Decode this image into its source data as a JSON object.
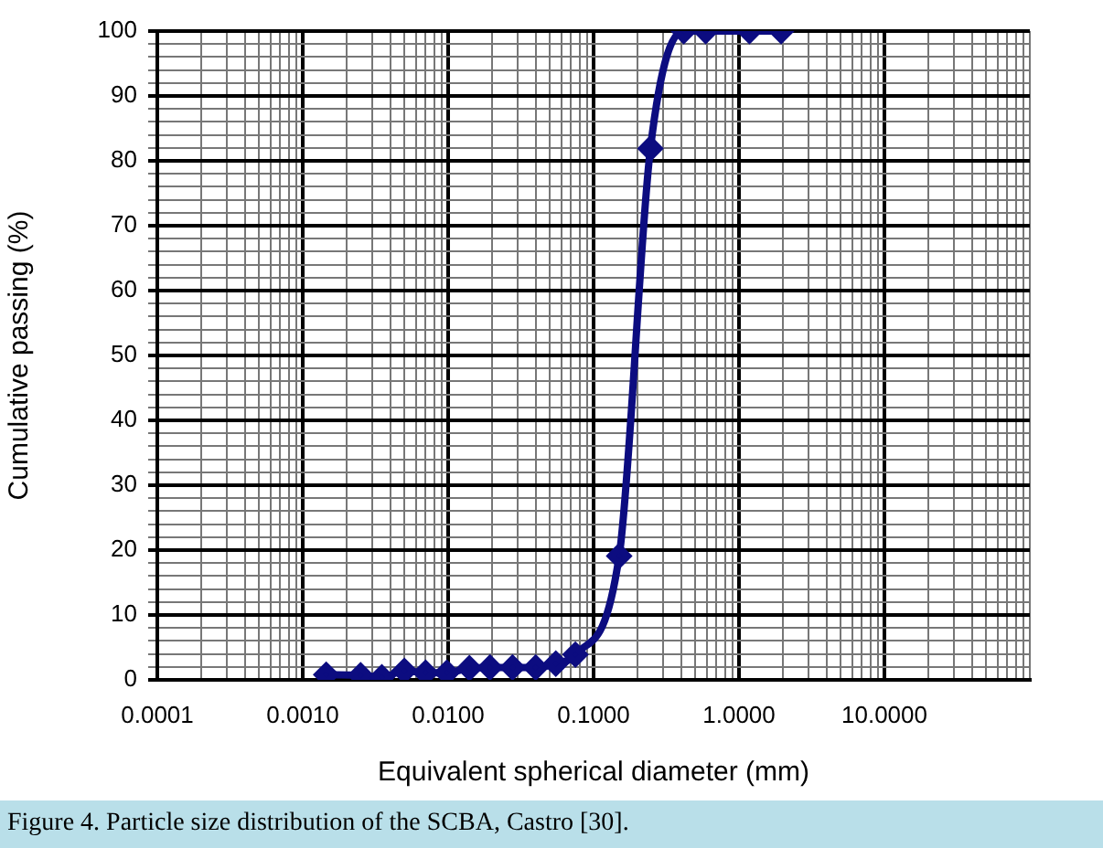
{
  "chart_data": {
    "type": "line",
    "xlabel": "Equivalent spherical diameter (mm)",
    "ylabel": "Cumulative passing (%)",
    "annotations": [
      "Figure 4. Particle size distribution of the SCBA, Castro [30]."
    ],
    "log": "x",
    "grid": true,
    "legend": false,
    "marker": "diamond",
    "line_style": "solid",
    "series": [
      {
        "color": "#0c0c80",
        "x": [
          0.00145,
          0.0025,
          0.0035,
          0.005,
          0.007,
          0.0098,
          0.014,
          0.0194,
          0.0277,
          0.04,
          0.055,
          0.075,
          0.15,
          0.246,
          0.417,
          0.59,
          1.18,
          1.95
        ],
        "values": [
          0.8,
          0.7,
          0.4,
          1.4,
          1.1,
          1.1,
          1.8,
          1.9,
          1.9,
          1.9,
          2.5,
          3.9,
          19.1,
          81.9,
          100,
          100,
          100,
          100
        ]
      }
    ],
    "xlim": [
      0.0001,
      100
    ],
    "xticks": [
      {
        "value": 0.0001,
        "label": "0.0001"
      },
      {
        "value": 0.0002,
        "label": null
      },
      {
        "value": 0.0003,
        "label": null
      },
      {
        "value": 0.0004,
        "label": null
      },
      {
        "value": 0.0005,
        "label": null
      },
      {
        "value": 0.0006,
        "label": null
      },
      {
        "value": 0.0007,
        "label": null
      },
      {
        "value": 0.0008,
        "label": null
      },
      {
        "value": 0.0009,
        "label": null
      },
      {
        "value": 0.001,
        "label": "0.0010"
      },
      {
        "value": 0.002,
        "label": null
      },
      {
        "value": 0.003,
        "label": null
      },
      {
        "value": 0.004,
        "label": null
      },
      {
        "value": 0.005,
        "label": null
      },
      {
        "value": 0.006,
        "label": null
      },
      {
        "value": 0.007,
        "label": null
      },
      {
        "value": 0.008,
        "label": null
      },
      {
        "value": 0.009,
        "label": null
      },
      {
        "value": 0.01,
        "label": "0.0100"
      },
      {
        "value": 0.02,
        "label": null
      },
      {
        "value": 0.03,
        "label": null
      },
      {
        "value": 0.04,
        "label": null
      },
      {
        "value": 0.05,
        "label": null
      },
      {
        "value": 0.06,
        "label": null
      },
      {
        "value": 0.07,
        "label": null
      },
      {
        "value": 0.08,
        "label": null
      },
      {
        "value": 0.09,
        "label": null
      },
      {
        "value": 0.1,
        "label": "0.1000"
      },
      {
        "value": 0.2,
        "label": null
      },
      {
        "value": 0.3,
        "label": null
      },
      {
        "value": 0.4,
        "label": null
      },
      {
        "value": 0.5,
        "label": null
      },
      {
        "value": 0.6,
        "label": null
      },
      {
        "value": 0.7,
        "label": null
      },
      {
        "value": 0.8,
        "label": null
      },
      {
        "value": 0.9,
        "label": null
      },
      {
        "value": 1,
        "label": "1.0000"
      },
      {
        "value": 2,
        "label": null
      },
      {
        "value": 3,
        "label": null
      },
      {
        "value": 4,
        "label": null
      },
      {
        "value": 5,
        "label": null
      },
      {
        "value": 6,
        "label": null
      },
      {
        "value": 7,
        "label": null
      },
      {
        "value": 8,
        "label": null
      },
      {
        "value": 9,
        "label": null
      },
      {
        "value": 10,
        "label": "10.0000"
      },
      {
        "value": 20,
        "label": null
      },
      {
        "value": 30,
        "label": null
      },
      {
        "value": 40,
        "label": null
      },
      {
        "value": 50,
        "label": null
      },
      {
        "value": 60,
        "label": null
      },
      {
        "value": 70,
        "label": null
      },
      {
        "value": 80,
        "label": null
      },
      {
        "value": 90,
        "label": null
      },
      {
        "value": 100,
        "label": null
      }
    ],
    "ylim": [
      0,
      100
    ],
    "yticks": [
      0,
      {
        "value": 2,
        "label": null
      },
      {
        "value": 4,
        "label": null
      },
      {
        "value": 6,
        "label": null
      },
      {
        "value": 8,
        "label": null
      },
      10,
      {
        "value": 12,
        "label": null
      },
      {
        "value": 14,
        "label": null
      },
      {
        "value": 16,
        "label": null
      },
      {
        "value": 18,
        "label": null
      },
      20,
      {
        "value": 22,
        "label": null
      },
      {
        "value": 24,
        "label": null
      },
      {
        "value": 26,
        "label": null
      },
      {
        "value": 28,
        "label": null
      },
      30,
      {
        "value": 32,
        "label": null
      },
      {
        "value": 34,
        "label": null
      },
      {
        "value": 36,
        "label": null
      },
      {
        "value": 38,
        "label": null
      },
      40,
      {
        "value": 42,
        "label": null
      },
      {
        "value": 44,
        "label": null
      },
      {
        "value": 46,
        "label": null
      },
      {
        "value": 48,
        "label": null
      },
      50,
      {
        "value": 52,
        "label": null
      },
      {
        "value": 54,
        "label": null
      },
      {
        "value": 56,
        "label": null
      },
      {
        "value": 58,
        "label": null
      },
      60,
      {
        "value": 62,
        "label": null
      },
      {
        "value": 64,
        "label": null
      },
      {
        "value": 66,
        "label": null
      },
      {
        "value": 68,
        "label": null
      },
      70,
      {
        "value": 72,
        "label": null
      },
      {
        "value": 74,
        "label": null
      },
      {
        "value": 76,
        "label": null
      },
      {
        "value": 78,
        "label": null
      },
      80,
      {
        "value": 82,
        "label": null
      },
      {
        "value": 84,
        "label": null
      },
      {
        "value": 86,
        "label": null
      },
      {
        "value": 88,
        "label": null
      },
      90,
      {
        "value": 92,
        "label": null
      },
      {
        "value": 94,
        "label": null
      },
      {
        "value": 96,
        "label": null
      },
      {
        "value": 98,
        "label": null
      },
      100
    ]
  }
}
